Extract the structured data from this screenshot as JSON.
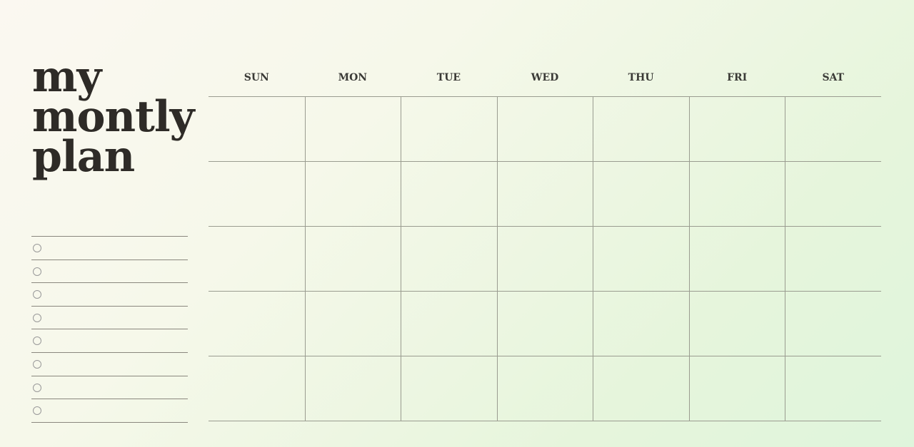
{
  "title": {
    "line1": "my",
    "line2": "montly",
    "line3": "plan"
  },
  "days": [
    "SUN",
    "MON",
    "TUE",
    "WED",
    "THU",
    "FRI",
    "SAT"
  ],
  "checklist_count": 8,
  "week_rows": 5
}
